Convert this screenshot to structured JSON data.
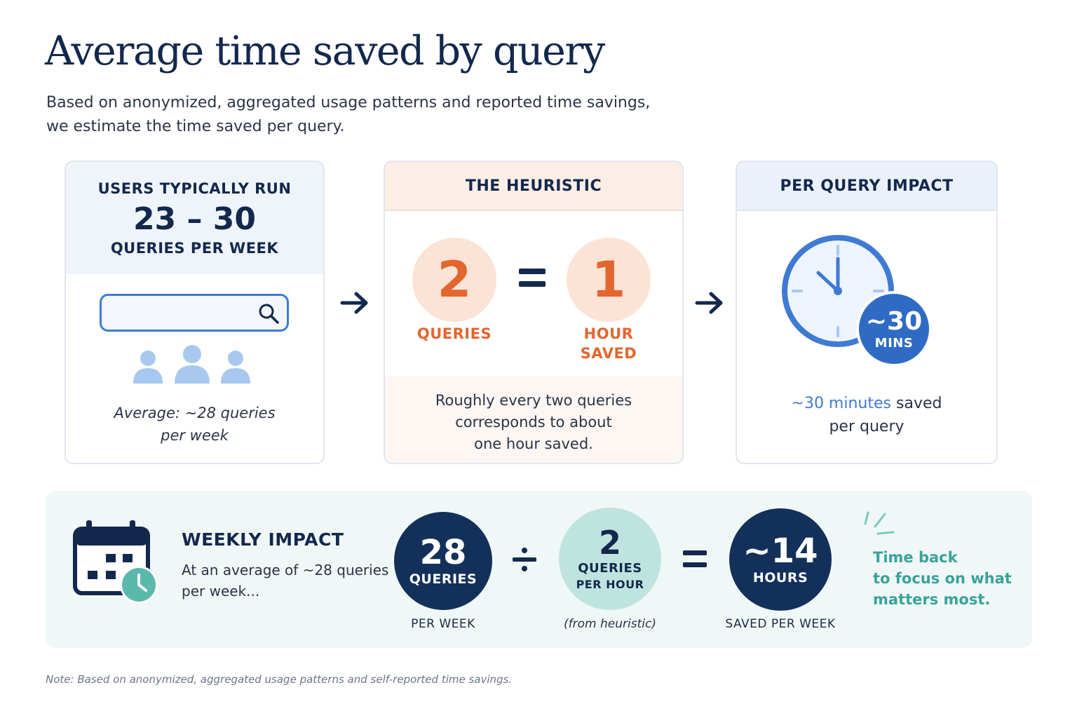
{
  "header": {
    "title": "Average time saved by query",
    "subtitle_line1": "Based on anonymized, aggregated usage patterns and reported time savings,",
    "subtitle_line2": "we estimate the time saved per query."
  },
  "usage_card": {
    "label": "USERS TYPICALLY RUN",
    "range": "23 – 30",
    "unit": "QUERIES PER WEEK",
    "average_line1": "Average: ~28 queries",
    "average_line2": "per week",
    "icons": [
      "search-bar-icon",
      "magnifier-icon",
      "users-icon"
    ]
  },
  "heuristic_card": {
    "title": "THE HEURISTIC",
    "left_value": "2",
    "left_label": "QUERIES",
    "right_value": "1",
    "right_label_line1": "HOUR",
    "right_label_line2": "SAVED",
    "description_line1": "Roughly every two queries",
    "description_line2": "corresponds to about",
    "description_line3": "one hour saved."
  },
  "impact_card": {
    "title": "PER QUERY IMPACT",
    "badge_value": "~30",
    "badge_unit": "MINS",
    "text_accent": "~30 minutes",
    "text_rest": " saved",
    "text_line2": "per query",
    "icons": [
      "clock-icon"
    ]
  },
  "weekly_impact": {
    "title": "WEEKLY IMPACT",
    "desc_line1": "At an average of ~28 queries",
    "desc_line2": "per week...",
    "operand1": {
      "value": "28",
      "unit": "QUERIES",
      "caption": "PER WEEK"
    },
    "operator1": "÷",
    "operand2": {
      "value": "2",
      "unit_line1": "QUERIES",
      "unit_line2": "PER HOUR",
      "caption": "(from heuristic)"
    },
    "operator2": "=",
    "result": {
      "value": "~14",
      "unit": "HOURS",
      "caption": "SAVED PER WEEK"
    },
    "tagline_line1": "Time back",
    "tagline_line2": "to focus on what",
    "tagline_line3": "matters most.",
    "icons": [
      "calendar-clock-icon",
      "sparkle-icon"
    ]
  },
  "footer": {
    "note": "Note: Based on anonymized, aggregated usage patterns and self-reported time savings."
  },
  "colors": {
    "navy": "#13284d",
    "blue": "#3f7ad3",
    "light_blue": "#a9c8ef",
    "orange": "#e3662e",
    "peach": "#fbe3d6",
    "teal": "#3aa39a",
    "mint": "#bfe4e0",
    "dark_navy_circle": "#13305a"
  }
}
